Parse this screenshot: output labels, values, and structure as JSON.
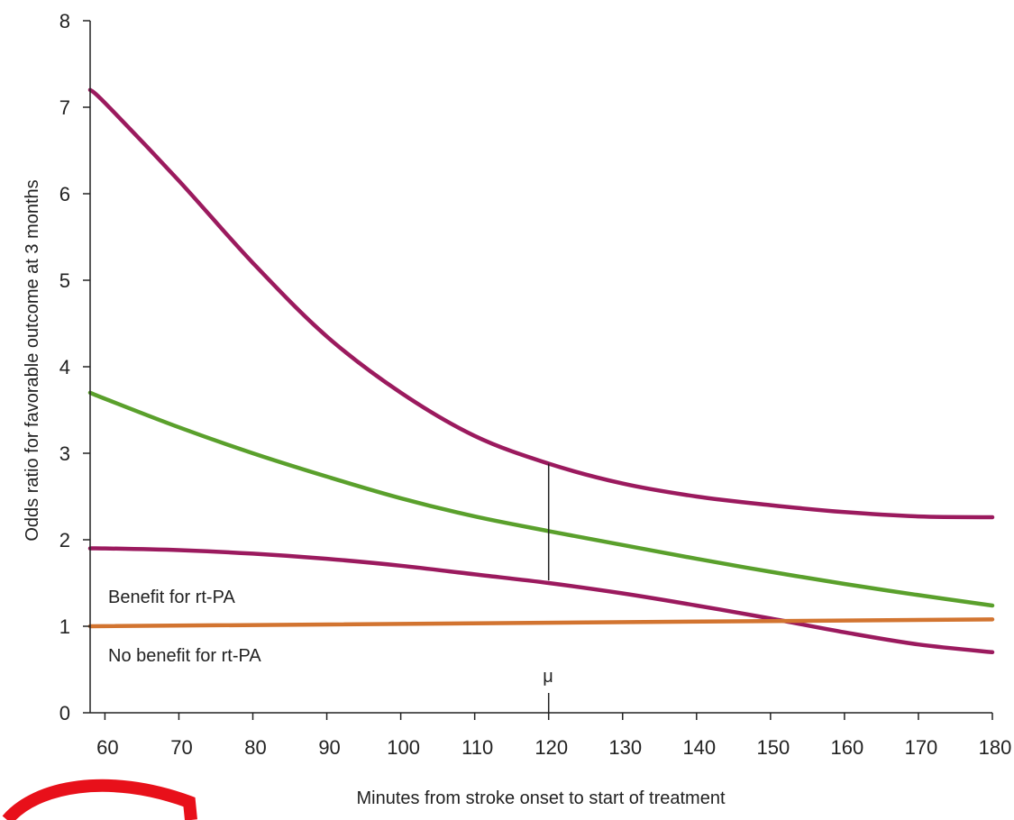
{
  "chart_data": {
    "type": "line",
    "xlabel": "Minutes from stroke onset to start of treatment",
    "ylabel": "Odds ratio for favorable outcome at 3 months",
    "xlim": [
      58,
      180
    ],
    "ylim": [
      0,
      8
    ],
    "x_ticks": [
      60,
      70,
      80,
      90,
      100,
      110,
      120,
      130,
      140,
      150,
      160,
      170,
      180
    ],
    "y_ticks": [
      0,
      1,
      2,
      3,
      4,
      5,
      6,
      7,
      8
    ],
    "grid": false,
    "series": [
      {
        "role": "upper-bound",
        "color": "#9b1a5e",
        "x": [
          58,
          60,
          70,
          80,
          90,
          100,
          110,
          120,
          130,
          140,
          150,
          160,
          170,
          180
        ],
        "y": [
          7.2,
          7.05,
          6.15,
          5.2,
          4.35,
          3.7,
          3.2,
          2.88,
          2.65,
          2.5,
          2.4,
          2.32,
          2.27,
          2.26
        ]
      },
      {
        "role": "estimate",
        "color": "#5aa02c",
        "x": [
          58,
          60,
          70,
          80,
          90,
          100,
          110,
          120,
          130,
          140,
          150,
          160,
          170,
          180
        ],
        "y": [
          3.7,
          3.63,
          3.3,
          3.0,
          2.73,
          2.48,
          2.27,
          2.1,
          1.94,
          1.78,
          1.63,
          1.49,
          1.36,
          1.24
        ]
      },
      {
        "role": "lower-bound",
        "color": "#9b1a5e",
        "x": [
          58,
          60,
          70,
          80,
          90,
          100,
          110,
          120,
          130,
          140,
          150,
          160,
          170,
          180
        ],
        "y": [
          1.9,
          1.9,
          1.88,
          1.84,
          1.78,
          1.7,
          1.6,
          1.5,
          1.38,
          1.24,
          1.09,
          0.93,
          0.79,
          0.7
        ]
      },
      {
        "role": "reference",
        "color": "#d27430",
        "x": [
          58,
          180
        ],
        "y": [
          1.0,
          1.08
        ]
      }
    ],
    "interval_marker": {
      "x": 120,
      "y_low": 1.53,
      "y_high": 2.88,
      "color": "#222222"
    },
    "annotations": {
      "benefit": "Benefit for rt-PA",
      "no_benefit": "No benefit for rt-PA",
      "mu": "μ"
    }
  },
  "colors": {
    "axis": "#222222",
    "decoration_red": "#e8101a"
  }
}
